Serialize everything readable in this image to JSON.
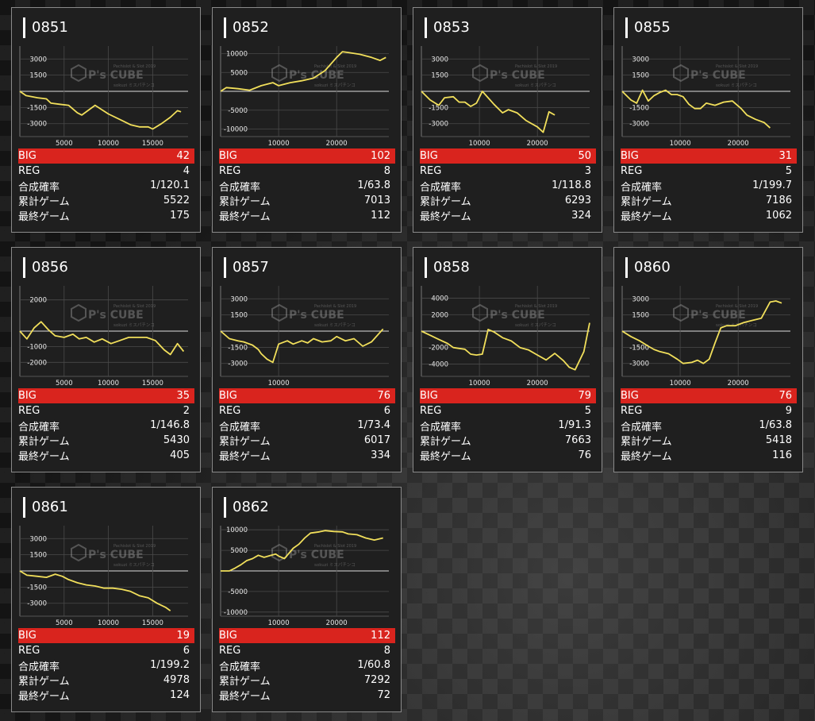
{
  "labels": {
    "big": "BIG",
    "reg": "REG",
    "rate": "合成確率",
    "total": "累計ゲーム",
    "last": "最終ゲーム"
  },
  "watermark": {
    "brand": "P's CUBE",
    "sub": "Pachislot & Slot 2019",
    "tag": "sokuzi ミスパチンコ"
  },
  "colors": {
    "line": "#f1df5b",
    "big_bar": "#d9241e",
    "panel": "#1f1f1f"
  },
  "machines": [
    {
      "id": "0851",
      "big": "42",
      "reg": "4",
      "rate": "1/120.1",
      "total": "5522",
      "last": "175"
    },
    {
      "id": "0852",
      "big": "102",
      "reg": "8",
      "rate": "1/63.8",
      "total": "7013",
      "last": "112"
    },
    {
      "id": "0853",
      "big": "50",
      "reg": "3",
      "rate": "1/118.8",
      "total": "6293",
      "last": "324"
    },
    {
      "id": "0855",
      "big": "31",
      "reg": "5",
      "rate": "1/199.7",
      "total": "7186",
      "last": "1062"
    },
    {
      "id": "0856",
      "big": "35",
      "reg": "2",
      "rate": "1/146.8",
      "total": "5430",
      "last": "405"
    },
    {
      "id": "0857",
      "big": "76",
      "reg": "6",
      "rate": "1/73.4",
      "total": "6017",
      "last": "334"
    },
    {
      "id": "0858",
      "big": "79",
      "reg": "5",
      "rate": "1/91.3",
      "total": "7663",
      "last": "76"
    },
    {
      "id": "0860",
      "big": "76",
      "reg": "9",
      "rate": "1/63.8",
      "total": "5418",
      "last": "116"
    },
    {
      "id": "0861",
      "big": "19",
      "reg": "6",
      "rate": "1/199.2",
      "total": "4978",
      "last": "124"
    },
    {
      "id": "0862",
      "big": "112",
      "reg": "8",
      "rate": "1/60.8",
      "total": "7292",
      "last": "72"
    }
  ],
  "chart_data": [
    {
      "type": "line",
      "title": "0851",
      "xticks": [
        5000,
        10000,
        15000
      ],
      "yticks": [
        3000,
        1500,
        -1500,
        -3000
      ],
      "xlim": [
        0,
        19000
      ],
      "ylim": [
        -4200,
        4200
      ],
      "x": [
        0,
        700,
        2000,
        3000,
        3500,
        4500,
        5500,
        6500,
        7000,
        8500,
        10000,
        11500,
        12500,
        13500,
        14500,
        15000,
        16000,
        17000,
        17800,
        18200
      ],
      "y": [
        0,
        -400,
        -600,
        -700,
        -1100,
        -1200,
        -1300,
        -2000,
        -2200,
        -1300,
        -2100,
        -2700,
        -3100,
        -3300,
        -3300,
        -3500,
        -3000,
        -2400,
        -1800,
        -1900
      ]
    },
    {
      "type": "line",
      "title": "0852",
      "xticks": [
        10000,
        20000
      ],
      "yticks": [
        10000,
        5000,
        -5000,
        -10000
      ],
      "xlim": [
        0,
        29000
      ],
      "ylim": [
        -12000,
        12000
      ],
      "x": [
        0,
        1000,
        3000,
        5000,
        7000,
        9000,
        10000,
        12000,
        14000,
        16000,
        18000,
        20000,
        21000,
        22000,
        24000,
        26000,
        27500,
        28500
      ],
      "y": [
        0,
        1000,
        700,
        300,
        1500,
        2300,
        1500,
        2300,
        2800,
        3500,
        5500,
        9000,
        10500,
        10300,
        9800,
        9000,
        8200,
        9000
      ]
    },
    {
      "type": "line",
      "title": "0853",
      "xticks": [
        10000,
        20000
      ],
      "yticks": [
        3000,
        1500,
        -1500,
        -3000
      ],
      "xlim": [
        0,
        29000
      ],
      "ylim": [
        -4200,
        4200
      ],
      "x": [
        0,
        1500,
        3000,
        4000,
        5500,
        6500,
        7500,
        8500,
        9500,
        10500,
        12500,
        14000,
        15000,
        16500,
        18000,
        20000,
        21000,
        22000,
        23000
      ],
      "y": [
        0,
        -800,
        -1300,
        -600,
        -500,
        -1000,
        -1000,
        -1400,
        -1100,
        0,
        -1200,
        -2000,
        -1700,
        -2000,
        -2700,
        -3300,
        -3800,
        -1900,
        -2200
      ]
    },
    {
      "type": "line",
      "title": "0855",
      "xticks": [
        10000,
        20000
      ],
      "yticks": [
        3000,
        1500,
        -1500,
        -3000
      ],
      "xlim": [
        0,
        29000
      ],
      "ylim": [
        -4200,
        4200
      ],
      "x": [
        0,
        1500,
        2500,
        3500,
        4500,
        5500,
        6500,
        7500,
        8500,
        9500,
        10500,
        11500,
        12500,
        13500,
        14500,
        16000,
        17500,
        19000,
        20500,
        21500,
        23000,
        24500,
        25500
      ],
      "y": [
        0,
        -800,
        -1100,
        100,
        -900,
        -400,
        -100,
        100,
        -300,
        -300,
        -500,
        -1200,
        -1600,
        -1600,
        -1100,
        -1300,
        -1000,
        -900,
        -1600,
        -2200,
        -2600,
        -2900,
        -3400
      ]
    },
    {
      "type": "line",
      "title": "0856",
      "xticks": [
        5000,
        10000,
        15000
      ],
      "yticks": [
        2000,
        -1000,
        -2000
      ],
      "xlim": [
        0,
        19000
      ],
      "ylim": [
        -2900,
        2900
      ],
      "x": [
        0,
        800,
        1600,
        2400,
        3200,
        4000,
        5000,
        6000,
        6700,
        7500,
        8400,
        9300,
        10300,
        11300,
        12300,
        13300,
        14300,
        15300,
        16300,
        17000,
        17800,
        18500
      ],
      "y": [
        0,
        -500,
        200,
        600,
        100,
        -300,
        -400,
        -200,
        -500,
        -400,
        -700,
        -500,
        -800,
        -600,
        -400,
        -400,
        -400,
        -600,
        -1200,
        -1500,
        -800,
        -1300
      ]
    },
    {
      "type": "line",
      "title": "0857",
      "xticks": [
        10000
      ],
      "yticks": [
        3000,
        1500,
        -1500,
        -3000
      ],
      "xlim": [
        0,
        29000
      ],
      "ylim": [
        -4200,
        4200
      ],
      "x": [
        0,
        1500,
        3000,
        4000,
        5500,
        6500,
        7000,
        8000,
        9000,
        10000,
        11500,
        12500,
        14000,
        15000,
        16000,
        17500,
        19000,
        20000,
        21500,
        23000,
        24500,
        26000,
        28000
      ],
      "y": [
        0,
        -700,
        -900,
        -1000,
        -1300,
        -1700,
        -2100,
        -2600,
        -2900,
        -1200,
        -900,
        -1200,
        -900,
        -1100,
        -700,
        -1000,
        -900,
        -500,
        -900,
        -700,
        -1400,
        -1000,
        200
      ]
    },
    {
      "type": "line",
      "title": "0858",
      "xticks": [
        10000,
        20000
      ],
      "yticks": [
        4000,
        2000,
        -2000,
        -4000
      ],
      "xlim": [
        0,
        29000
      ],
      "ylim": [
        -5500,
        5500
      ],
      "x": [
        0,
        1500,
        3000,
        4500,
        5500,
        6500,
        7500,
        8500,
        9500,
        10500,
        11500,
        12500,
        14000,
        15500,
        17000,
        18500,
        20000,
        21500,
        23000,
        24500,
        25500,
        26500,
        28000,
        29000
      ],
      "y": [
        0,
        -500,
        -1000,
        -1500,
        -2000,
        -2100,
        -2200,
        -2800,
        -2900,
        -2800,
        200,
        -100,
        -800,
        -1200,
        -2000,
        -2300,
        -2900,
        -3500,
        -2700,
        -3600,
        -4400,
        -4700,
        -2500,
        1000
      ]
    },
    {
      "type": "line",
      "title": "0860",
      "xticks": [
        10000,
        20000
      ],
      "yticks": [
        3000,
        1500,
        -1500,
        -3000
      ],
      "xlim": [
        0,
        29000
      ],
      "ylim": [
        -4200,
        4200
      ],
      "x": [
        0,
        1500,
        3000,
        4500,
        5500,
        6500,
        8000,
        9500,
        10500,
        12000,
        13000,
        14000,
        15000,
        16000,
        17000,
        18000,
        19500,
        21000,
        22500,
        24000,
        25500,
        26500,
        27500
      ],
      "y": [
        0,
        -500,
        -900,
        -1400,
        -1700,
        -1900,
        -2100,
        -2600,
        -3000,
        -2900,
        -2700,
        -3000,
        -2600,
        -1100,
        300,
        500,
        500,
        800,
        1000,
        1200,
        2700,
        2800,
        2600
      ]
    },
    {
      "type": "line",
      "title": "0861",
      "xticks": [
        5000,
        10000,
        15000
      ],
      "yticks": [
        3000,
        1500,
        -1500,
        -3000
      ],
      "xlim": [
        0,
        19000
      ],
      "ylim": [
        -4200,
        4200
      ],
      "x": [
        0,
        800,
        2000,
        3000,
        4000,
        4800,
        5500,
        6500,
        7500,
        8500,
        9500,
        10500,
        11500,
        12500,
        13500,
        14500,
        15500,
        16500,
        17000
      ],
      "y": [
        0,
        -400,
        -500,
        -600,
        -300,
        -500,
        -800,
        -1100,
        -1300,
        -1400,
        -1600,
        -1600,
        -1700,
        -1900,
        -2300,
        -2500,
        -3000,
        -3400,
        -3700
      ]
    },
    {
      "type": "line",
      "title": "0862",
      "xticks": [
        10000,
        20000
      ],
      "yticks": [
        10000,
        5000,
        -5000,
        -10000
      ],
      "xlim": [
        0,
        29000
      ],
      "ylim": [
        -11000,
        11000
      ],
      "x": [
        0,
        1500,
        2500,
        3500,
        4500,
        5500,
        6500,
        7500,
        8500,
        9500,
        10000,
        11000,
        12500,
        13500,
        14500,
        15500,
        17000,
        18000,
        19500,
        21000,
        22000,
        23500,
        25000,
        26500,
        28000
      ],
      "y": [
        0,
        0,
        700,
        1500,
        2500,
        3000,
        3800,
        3300,
        3700,
        4100,
        3600,
        3000,
        5500,
        6500,
        8000,
        9200,
        9500,
        9800,
        9600,
        9500,
        9000,
        8800,
        8000,
        7500,
        8000
      ]
    }
  ]
}
